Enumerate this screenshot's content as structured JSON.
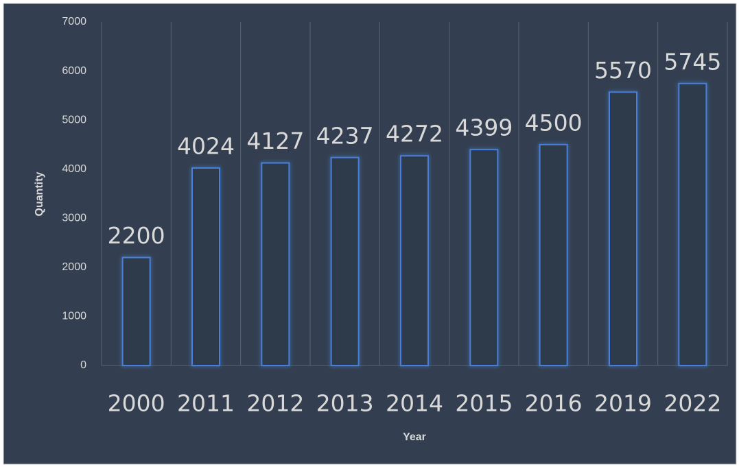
{
  "chart_data": {
    "type": "bar",
    "categories": [
      "2000",
      "2011",
      "2012",
      "2013",
      "2014",
      "2015",
      "2016",
      "2019",
      "2022"
    ],
    "values": [
      2200,
      4024,
      4127,
      4237,
      4272,
      4399,
      4500,
      5570,
      5745
    ],
    "color": "#4a7fd6",
    "xlabel": "Year",
    "ylabel": "Quantity",
    "ylim": [
      0,
      7000
    ],
    "yticks": [
      0,
      1000,
      2000,
      3000,
      4000,
      5000,
      6000,
      7000
    ],
    "grid": true
  }
}
